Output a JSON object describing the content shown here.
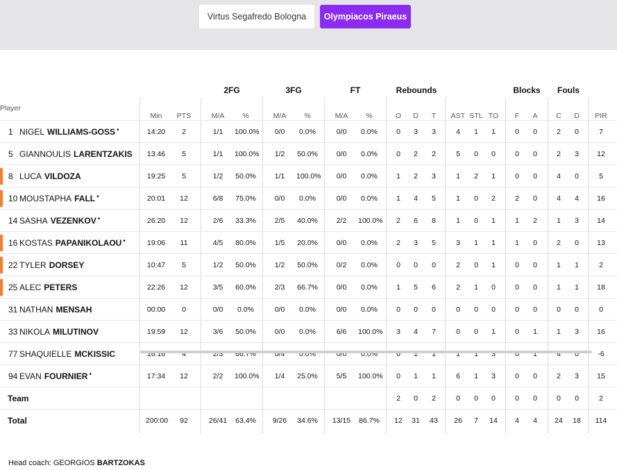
{
  "team_tabs": [
    {
      "label": "Virtus Segafredo Bologna",
      "active": false
    },
    {
      "label": "Olympiacos Piraeus",
      "active": true
    }
  ],
  "colors": {
    "accent": "#8b2cf0",
    "starter_marker": "#ff7a2b",
    "topbar_bg": "#e5e5e7"
  },
  "groups": {
    "fg2": "2FG",
    "fg3": "3FG",
    "ft": "FT",
    "reb": "Rebounds",
    "blk": "Blocks",
    "fouls": "Fouls"
  },
  "headers": {
    "player": "Player",
    "min": "Min",
    "pts": "PTS",
    "fg2_ma": "M/A",
    "fg2_pct": "%",
    "fg3_ma": "M/A",
    "fg3_pct": "%",
    "ft_ma": "M/A",
    "ft_pct": "%",
    "o": "O",
    "d": "D",
    "t": "T",
    "ast": "AST",
    "stl": "STL",
    "to": "TO",
    "f": "F",
    "a": "A",
    "c": "C",
    "fd": "D",
    "pir": "PIR"
  },
  "players": [
    {
      "num": "1",
      "first": "NIGEL",
      "last": "WILLIAMS-GOSS",
      "dot": true,
      "marker": false,
      "min": "14:20",
      "pts": "2",
      "fg2": "1/1",
      "fg2p": "100.0%",
      "fg3": "0/0",
      "fg3p": "0.0%",
      "ft": "0/0",
      "ftp": "0.0%",
      "o": "0",
      "d": "3",
      "t": "3",
      "ast": "4",
      "stl": "1",
      "to": "1",
      "bf": "0",
      "ba": "0",
      "fc": "2",
      "fd": "0",
      "pir": "7"
    },
    {
      "num": "5",
      "first": "GIANNOULIS",
      "last": "LARENTZAKIS",
      "dot": false,
      "marker": false,
      "min": "13:46",
      "pts": "5",
      "fg2": "1/1",
      "fg2p": "100.0%",
      "fg3": "1/2",
      "fg3p": "50.0%",
      "ft": "0/0",
      "ftp": "0.0%",
      "o": "0",
      "d": "2",
      "t": "2",
      "ast": "5",
      "stl": "0",
      "to": "0",
      "bf": "0",
      "ba": "0",
      "fc": "2",
      "fd": "3",
      "pir": "12"
    },
    {
      "num": "8",
      "first": "LUCA",
      "last": "VILDOZA",
      "dot": false,
      "marker": true,
      "min": "19:25",
      "pts": "5",
      "fg2": "1/2",
      "fg2p": "50.0%",
      "fg3": "1/1",
      "fg3p": "100.0%",
      "ft": "0/0",
      "ftp": "0.0%",
      "o": "1",
      "d": "2",
      "t": "3",
      "ast": "1",
      "stl": "2",
      "to": "1",
      "bf": "0",
      "ba": "0",
      "fc": "4",
      "fd": "0",
      "pir": "5"
    },
    {
      "num": "10",
      "first": "MOUSTAPHA",
      "last": "FALL",
      "dot": true,
      "marker": true,
      "min": "20:01",
      "pts": "12",
      "fg2": "6/8",
      "fg2p": "75.0%",
      "fg3": "0/0",
      "fg3p": "0.0%",
      "ft": "0/0",
      "ftp": "0.0%",
      "o": "1",
      "d": "4",
      "t": "5",
      "ast": "1",
      "stl": "0",
      "to": "2",
      "bf": "2",
      "ba": "0",
      "fc": "4",
      "fd": "4",
      "pir": "16"
    },
    {
      "num": "14",
      "first": "SASHA",
      "last": "VEZENKOV",
      "dot": true,
      "marker": false,
      "min": "26:20",
      "pts": "12",
      "fg2": "2/6",
      "fg2p": "33.3%",
      "fg3": "2/5",
      "fg3p": "40.0%",
      "ft": "2/2",
      "ftp": "100.0%",
      "o": "2",
      "d": "6",
      "t": "8",
      "ast": "1",
      "stl": "0",
      "to": "1",
      "bf": "1",
      "ba": "2",
      "fc": "1",
      "fd": "3",
      "pir": "14"
    },
    {
      "num": "16",
      "first": "KOSTAS",
      "last": "PAPANIKOLAOU",
      "dot": true,
      "marker": true,
      "min": "19:06",
      "pts": "11",
      "fg2": "4/5",
      "fg2p": "80.0%",
      "fg3": "1/5",
      "fg3p": "20.0%",
      "ft": "0/0",
      "ftp": "0.0%",
      "o": "2",
      "d": "3",
      "t": "5",
      "ast": "3",
      "stl": "1",
      "to": "1",
      "bf": "1",
      "ba": "0",
      "fc": "2",
      "fd": "0",
      "pir": "13"
    },
    {
      "num": "22",
      "first": "TYLER",
      "last": "DORSEY",
      "dot": false,
      "marker": true,
      "min": "10:47",
      "pts": "5",
      "fg2": "1/2",
      "fg2p": "50.0%",
      "fg3": "1/2",
      "fg3p": "50.0%",
      "ft": "0/2",
      "ftp": "0.0%",
      "o": "0",
      "d": "0",
      "t": "0",
      "ast": "2",
      "stl": "0",
      "to": "1",
      "bf": "0",
      "ba": "0",
      "fc": "1",
      "fd": "1",
      "pir": "2"
    },
    {
      "num": "25",
      "first": "ALEC",
      "last": "PETERS",
      "dot": false,
      "marker": true,
      "min": "22:26",
      "pts": "12",
      "fg2": "3/5",
      "fg2p": "60.0%",
      "fg3": "2/3",
      "fg3p": "66.7%",
      "ft": "0/0",
      "ftp": "0.0%",
      "o": "1",
      "d": "5",
      "t": "6",
      "ast": "2",
      "stl": "1",
      "to": "0",
      "bf": "0",
      "ba": "0",
      "fc": "1",
      "fd": "1",
      "pir": "18"
    },
    {
      "num": "31",
      "first": "NATHAN",
      "last": "MENSAH",
      "dot": false,
      "marker": false,
      "min": "00:00",
      "pts": "0",
      "fg2": "0/0",
      "fg2p": "0.0%",
      "fg3": "0/0",
      "fg3p": "0.0%",
      "ft": "0/0",
      "ftp": "0.0%",
      "o": "0",
      "d": "0",
      "t": "0",
      "ast": "0",
      "stl": "0",
      "to": "0",
      "bf": "0",
      "ba": "0",
      "fc": "0",
      "fd": "0",
      "pir": "0"
    },
    {
      "num": "33",
      "first": "NIKOLA",
      "last": "MILUTINOV",
      "dot": false,
      "marker": false,
      "min": "19:59",
      "pts": "12",
      "fg2": "3/6",
      "fg2p": "50.0%",
      "fg3": "0/0",
      "fg3p": "0.0%",
      "ft": "6/6",
      "ftp": "100.0%",
      "o": "3",
      "d": "4",
      "t": "7",
      "ast": "0",
      "stl": "0",
      "to": "1",
      "bf": "0",
      "ba": "1",
      "fc": "1",
      "fd": "3",
      "pir": "16"
    },
    {
      "num": "77",
      "first": "SHAQUIELLE",
      "last": "MCKISSIC",
      "dot": false,
      "marker": false,
      "min": "16:16",
      "pts": "4",
      "fg2": "2/3",
      "fg2p": "66.7%",
      "fg3": "0/4",
      "fg3p": "0.0%",
      "ft": "0/0",
      "ftp": "0.0%",
      "o": "0",
      "d": "1",
      "t": "1",
      "ast": "1",
      "stl": "1",
      "to": "3",
      "bf": "0",
      "ba": "1",
      "fc": "4",
      "fd": "0",
      "pir": "-6"
    },
    {
      "num": "94",
      "first": "EVAN",
      "last": "FOURNIER",
      "dot": true,
      "marker": false,
      "min": "17:34",
      "pts": "12",
      "fg2": "2/2",
      "fg2p": "100.0%",
      "fg3": "1/4",
      "fg3p": "25.0%",
      "ft": "5/5",
      "ftp": "100.0%",
      "o": "0",
      "d": "1",
      "t": "1",
      "ast": "6",
      "stl": "1",
      "to": "3",
      "bf": "0",
      "ba": "0",
      "fc": "2",
      "fd": "3",
      "pir": "15"
    }
  ],
  "team_row": {
    "label": "Team",
    "min": "",
    "pts": "",
    "fg2": "",
    "fg2p": "",
    "fg3": "",
    "fg3p": "",
    "ft": "",
    "ftp": "",
    "o": "2",
    "d": "0",
    "t": "2",
    "ast": "0",
    "stl": "0",
    "to": "0",
    "bf": "0",
    "ba": "0",
    "fc": "0",
    "fd": "0",
    "pir": "2"
  },
  "total_row": {
    "label": "Total",
    "min": "200:00",
    "pts": "92",
    "fg2": "26/41",
    "fg2p": "63.4%",
    "fg3": "9/26",
    "fg3p": "34.6%",
    "ft": "13/15",
    "ftp": "86.7%",
    "o": "12",
    "d": "31",
    "t": "43",
    "ast": "26",
    "stl": "7",
    "to": "14",
    "bf": "4",
    "ba": "4",
    "fc": "24",
    "fd": "18",
    "pir": "114"
  },
  "coach": {
    "label": "Head coach: GEORGIOS",
    "last": "BARTZOKAS"
  }
}
